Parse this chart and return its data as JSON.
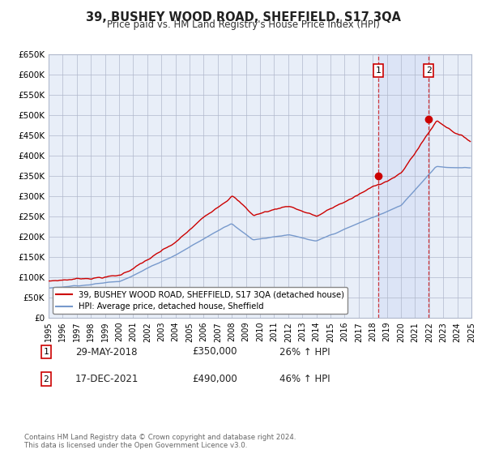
{
  "title": "39, BUSHEY WOOD ROAD, SHEFFIELD, S17 3QA",
  "subtitle": "Price paid vs. HM Land Registry's House Price Index (HPI)",
  "red_line_label": "39, BUSHEY WOOD ROAD, SHEFFIELD, S17 3QA (detached house)",
  "blue_line_label": "HPI: Average price, detached house, Sheffield",
  "sale1_date": "29-MAY-2018",
  "sale1_price": 350000,
  "sale1_hpi": "26% ↑ HPI",
  "sale2_date": "17-DEC-2021",
  "sale2_price": 490000,
  "sale2_hpi": "46% ↑ HPI",
  "footer": "Contains HM Land Registry data © Crown copyright and database right 2024.\nThis data is licensed under the Open Government Licence v3.0.",
  "ylim": [
    0,
    650000
  ],
  "yticks": [
    0,
    50000,
    100000,
    150000,
    200000,
    250000,
    300000,
    350000,
    400000,
    450000,
    500000,
    550000,
    600000,
    650000
  ],
  "background_color": "#ffffff",
  "plot_bg_color": "#e8eef8",
  "grid_color": "#b0b8cc",
  "red_color": "#cc0000",
  "blue_color": "#7799cc",
  "sale1_year": 2018.41,
  "sale2_year": 2021.96
}
